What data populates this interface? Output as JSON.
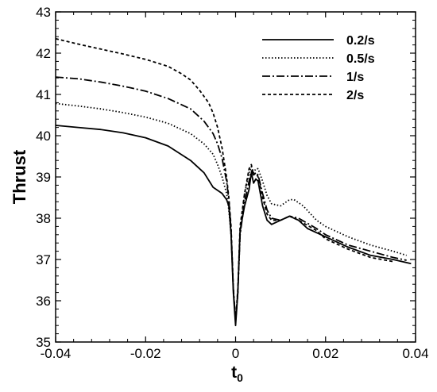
{
  "chart_data": {
    "type": "line",
    "title": "",
    "xlabel": "t",
    "xlabel_subscript": "0",
    "ylabel": "Thrust",
    "xlim": [
      -0.04,
      0.04
    ],
    "ylim": [
      35,
      43
    ],
    "x_ticks": [
      -0.04,
      -0.02,
      0,
      0.02,
      0.04
    ],
    "x_tick_labels": [
      "-0.04",
      "-0.02",
      "0",
      "0.02",
      "0.04"
    ],
    "y_ticks": [
      35,
      36,
      37,
      38,
      39,
      40,
      41,
      42,
      43
    ],
    "y_tick_labels": [
      "35",
      "36",
      "37",
      "38",
      "39",
      "40",
      "41",
      "42",
      "43"
    ],
    "grid": false,
    "legend_position": "top-right",
    "series": [
      {
        "name": "0.2/s",
        "line_style": "solid",
        "color": "#000000",
        "x": [
          -0.04,
          -0.035,
          -0.03,
          -0.025,
          -0.02,
          -0.015,
          -0.01,
          -0.007,
          -0.005,
          -0.003,
          -0.002,
          -0.0015,
          -0.001,
          -0.0005,
          0,
          0.0005,
          0.001,
          0.002,
          0.003,
          0.0035,
          0.004,
          0.0045,
          0.005,
          0.006,
          0.007,
          0.008,
          0.01,
          0.012,
          0.014,
          0.016,
          0.02,
          0.025,
          0.03,
          0.035,
          0.039
        ],
        "y": [
          40.25,
          40.2,
          40.15,
          40.07,
          39.95,
          39.75,
          39.4,
          39.1,
          38.75,
          38.6,
          38.45,
          38.3,
          37.6,
          36.2,
          35.4,
          36.2,
          37.7,
          38.3,
          38.7,
          39.1,
          38.85,
          38.95,
          38.9,
          38.3,
          37.95,
          37.85,
          37.95,
          38.05,
          37.95,
          37.75,
          37.55,
          37.3,
          37.1,
          37.0,
          36.9
        ]
      },
      {
        "name": "0.5/s",
        "line_style": "dotted",
        "color": "#000000",
        "x": [
          -0.04,
          -0.035,
          -0.03,
          -0.025,
          -0.02,
          -0.015,
          -0.01,
          -0.007,
          -0.005,
          -0.004,
          -0.003,
          -0.002,
          -0.0015,
          -0.001,
          -0.0005,
          0,
          0.0005,
          0.001,
          0.002,
          0.003,
          0.0035,
          0.004,
          0.0045,
          0.005,
          0.006,
          0.007,
          0.008,
          0.01,
          0.012,
          0.013,
          0.015,
          0.018,
          0.02,
          0.025,
          0.03,
          0.035,
          0.038
        ],
        "y": [
          40.78,
          40.72,
          40.65,
          40.56,
          40.45,
          40.3,
          40.05,
          39.8,
          39.55,
          39.3,
          39.0,
          38.6,
          38.2,
          37.6,
          36.3,
          35.5,
          36.2,
          37.6,
          38.6,
          39.1,
          39.25,
          39.1,
          39.2,
          39.2,
          38.9,
          38.55,
          38.35,
          38.3,
          38.45,
          38.45,
          38.3,
          37.95,
          37.8,
          37.55,
          37.35,
          37.2,
          37.1
        ]
      },
      {
        "name": "1/s",
        "line_style": "dashdot",
        "color": "#000000",
        "x": [
          -0.04,
          -0.035,
          -0.03,
          -0.025,
          -0.02,
          -0.015,
          -0.01,
          -0.007,
          -0.005,
          -0.004,
          -0.003,
          -0.002,
          -0.0015,
          -0.001,
          -0.0005,
          0,
          0.0005,
          0.001,
          0.002,
          0.003,
          0.0035,
          0.004,
          0.0045,
          0.005,
          0.006,
          0.007,
          0.008,
          0.01,
          0.012,
          0.014,
          0.018,
          0.02,
          0.025,
          0.03,
          0.035,
          0.038
        ],
        "y": [
          41.42,
          41.38,
          41.3,
          41.2,
          41.08,
          40.9,
          40.65,
          40.35,
          40.05,
          39.8,
          39.45,
          38.9,
          38.45,
          37.7,
          36.3,
          35.5,
          36.2,
          37.6,
          38.4,
          38.9,
          39.15,
          39.05,
          39.1,
          39.05,
          38.6,
          38.2,
          38.0,
          37.95,
          38.05,
          38.0,
          37.75,
          37.6,
          37.35,
          37.2,
          37.05,
          36.98
        ]
      },
      {
        "name": "2/s",
        "line_style": "dashed",
        "color": "#000000",
        "x": [
          -0.04,
          -0.035,
          -0.03,
          -0.025,
          -0.02,
          -0.015,
          -0.012,
          -0.01,
          -0.008,
          -0.006,
          -0.005,
          -0.004,
          -0.003,
          -0.002,
          -0.0015,
          -0.001,
          -0.0005,
          0,
          0.0005,
          0.001,
          0.002,
          0.003,
          0.0035,
          0.004,
          0.0045,
          0.005,
          0.006,
          0.007,
          0.008,
          0.01,
          0.012,
          0.014,
          0.018,
          0.02,
          0.025,
          0.03,
          0.035
        ],
        "y": [
          42.35,
          42.22,
          42.1,
          41.98,
          41.85,
          41.68,
          41.5,
          41.35,
          41.1,
          40.8,
          40.55,
          40.2,
          39.7,
          39.0,
          38.5,
          37.8,
          36.3,
          35.5,
          36.3,
          37.8,
          38.6,
          39.2,
          39.3,
          39.05,
          39.1,
          39.0,
          38.5,
          38.1,
          37.95,
          37.95,
          38.05,
          37.95,
          37.7,
          37.5,
          37.25,
          37.05,
          36.95
        ]
      }
    ]
  }
}
